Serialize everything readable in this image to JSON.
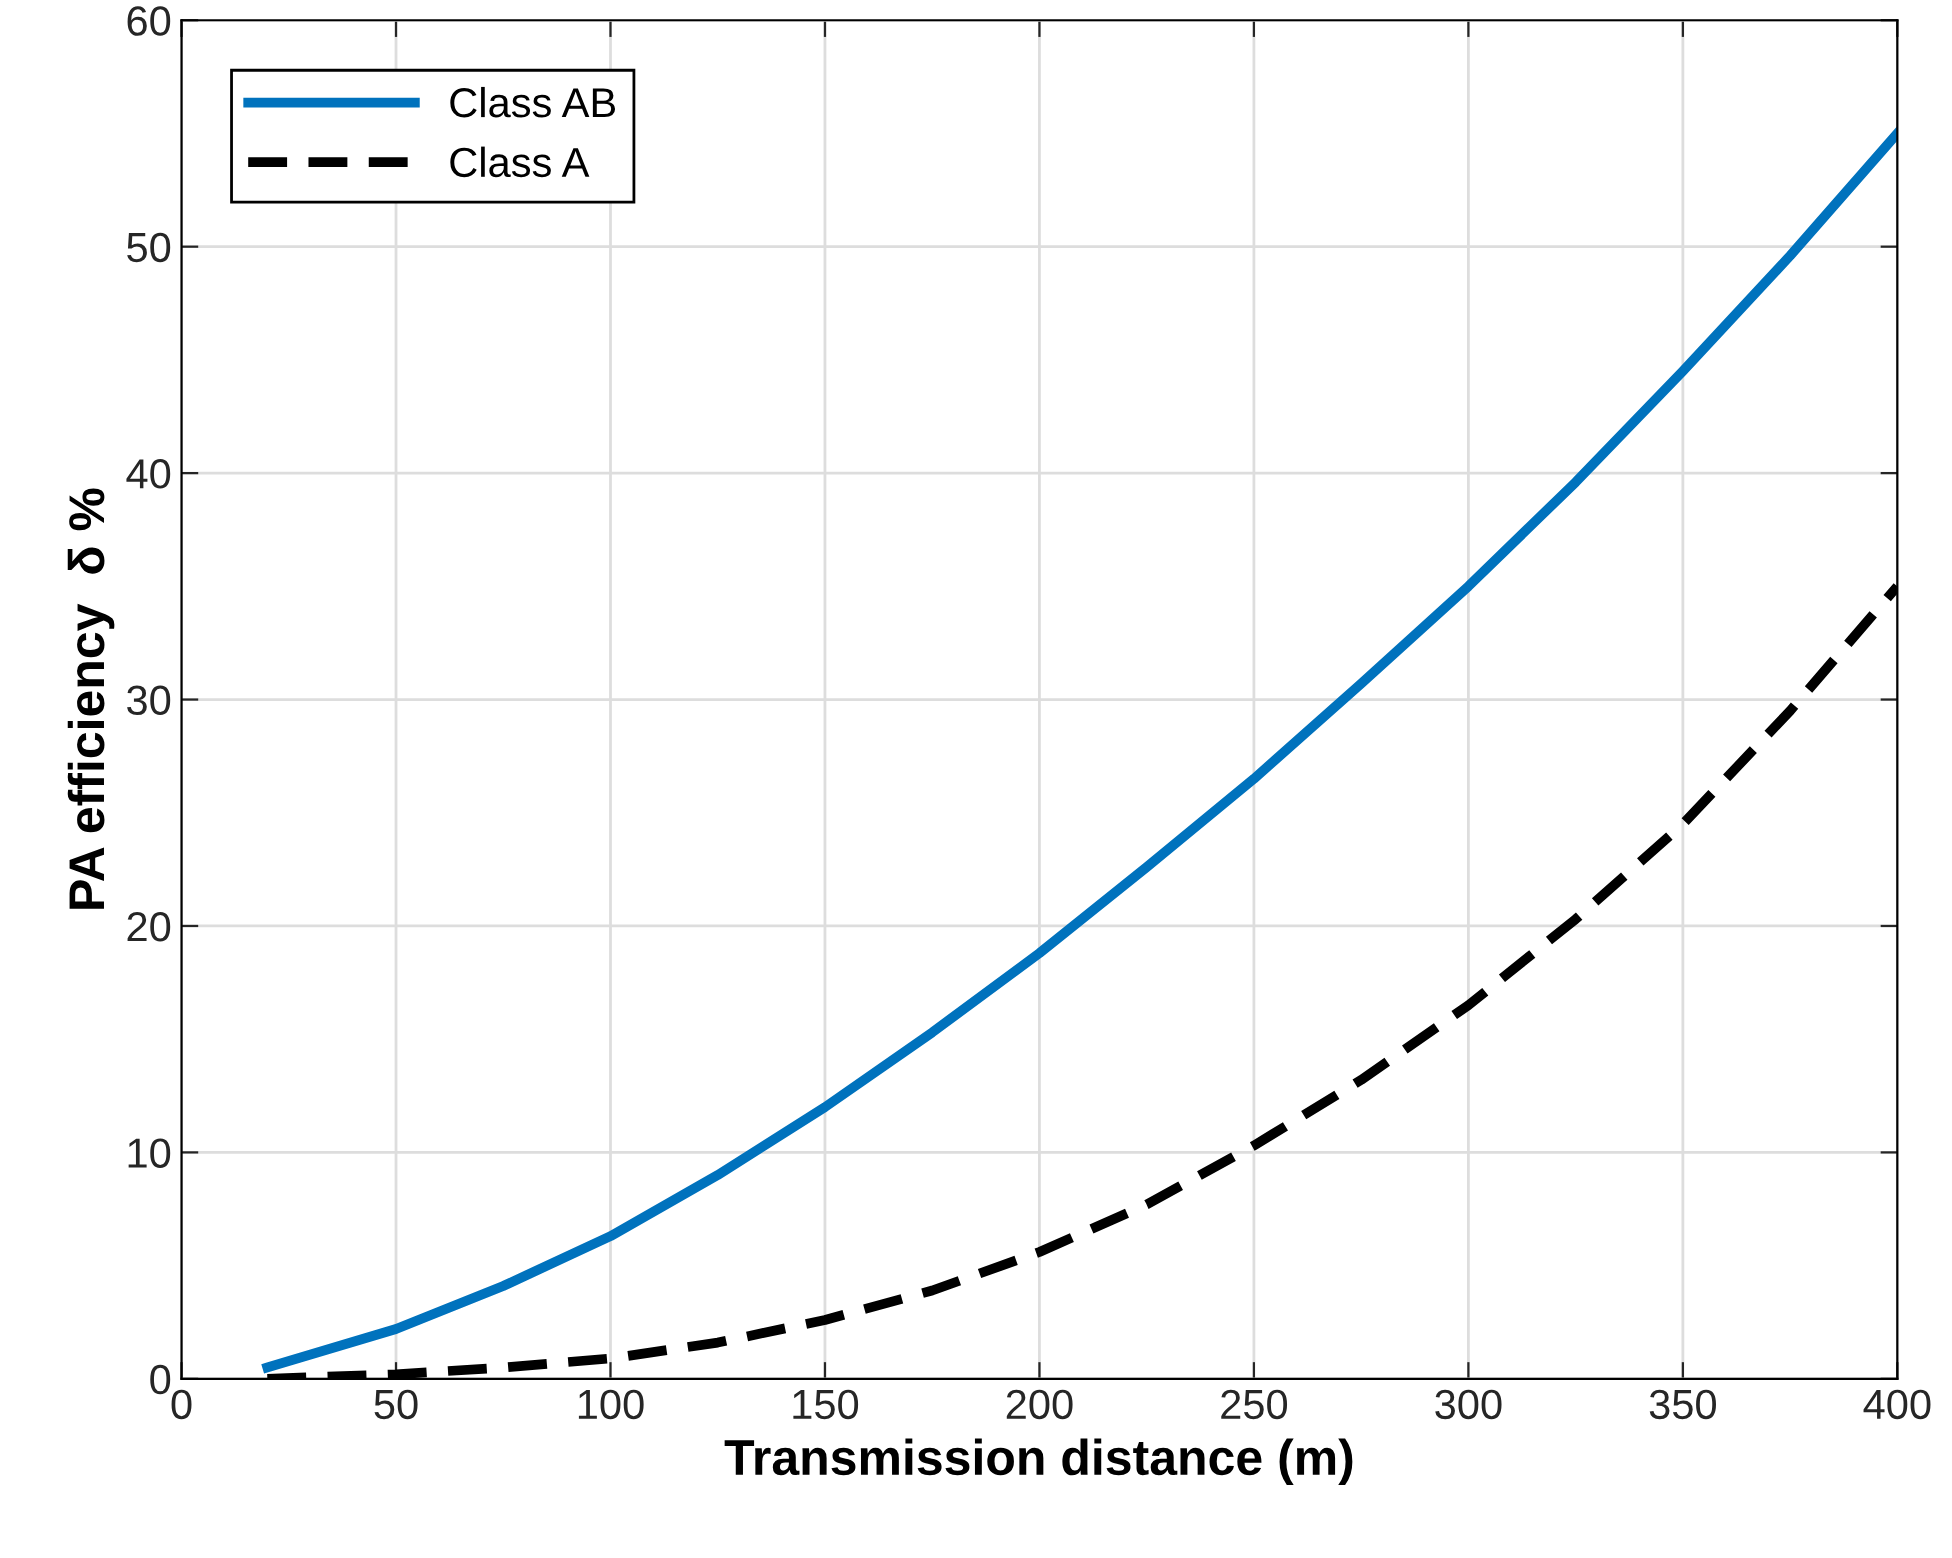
{
  "chart_data": {
    "type": "line",
    "xlabel": "Transmission distance (m)",
    "ylabel": "PA efficiency  δ %",
    "xlim": [
      0,
      400
    ],
    "xticks": [
      0,
      50,
      100,
      150,
      200,
      250,
      300,
      350,
      400
    ],
    "ylim": [
      0,
      60
    ],
    "yticks": [
      0,
      10,
      20,
      30,
      40,
      50,
      60
    ],
    "grid": true,
    "legend": "top left",
    "marker": "none",
    "series": [
      {
        "name": "Class AB",
        "color": "#0072bd",
        "line_style": "solid",
        "x": [
          20,
          50,
          75,
          100,
          125,
          150,
          175,
          200,
          225,
          250,
          275,
          300,
          325,
          350,
          375,
          400
        ],
        "values": [
          0.5,
          2.2,
          4.1,
          6.3,
          9.0,
          12.0,
          15.3,
          18.8,
          22.6,
          26.5,
          30.7,
          35.0,
          39.6,
          44.5,
          49.6,
          55.0
        ]
      },
      {
        "name": "Class A",
        "color": "#000000",
        "line_style": "dashed",
        "x": [
          20,
          50,
          75,
          100,
          125,
          150,
          175,
          200,
          225,
          250,
          275,
          300,
          325,
          350,
          375,
          400
        ],
        "values": [
          0,
          0.2,
          0.5,
          0.9,
          1.6,
          2.6,
          3.9,
          5.6,
          7.7,
          10.3,
          13.2,
          16.5,
          20.3,
          24.5,
          29.5,
          35.0
        ]
      }
    ]
  }
}
